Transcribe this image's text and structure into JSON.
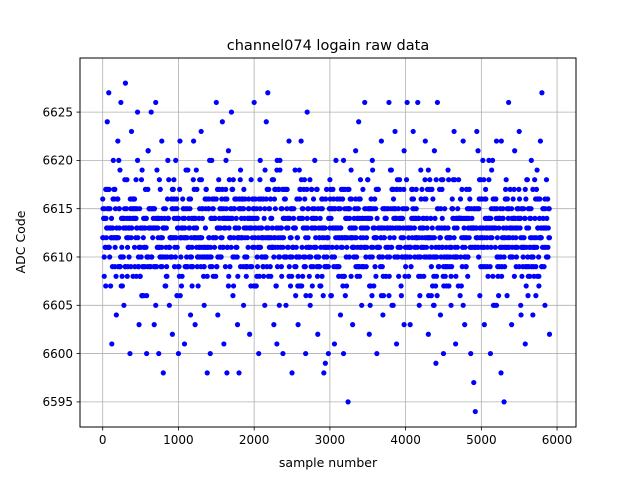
{
  "chart_data": {
    "type": "scatter",
    "title": "channel074 logain raw data",
    "xlabel": "sample number",
    "ylabel": "ADC Code",
    "xlim": [
      -300,
      6250
    ],
    "ylim": [
      6592.4,
      6630.6
    ],
    "x_ticks": [
      0,
      1000,
      2000,
      3000,
      4000,
      5000,
      6000
    ],
    "x_tick_labels": [
      "0",
      "1000",
      "2000",
      "3000",
      "4000",
      "5000",
      "6000"
    ],
    "y_ticks": [
      6595,
      6600,
      6605,
      6610,
      6615,
      6620,
      6625
    ],
    "y_tick_labels": [
      "6595",
      "6600",
      "6605",
      "6610",
      "6615",
      "6620",
      "6625"
    ],
    "grid": true,
    "marker_color": "#0000ff",
    "series": [
      {
        "description": "raw ADC samples, integer codes, sample index 0 to ~5900, mostly between 6600 and 6625",
        "points": [
          [
            0,
            6612
          ],
          [
            20,
            6608
          ],
          [
            40,
            6617
          ],
          [
            60,
            6624
          ],
          [
            80,
            6627
          ],
          [
            100,
            6613
          ],
          [
            120,
            6601
          ],
          [
            140,
            6620
          ],
          [
            160,
            6609
          ],
          [
            180,
            6604
          ],
          [
            200,
            6622
          ],
          [
            220,
            6615
          ],
          [
            240,
            6626
          ],
          [
            260,
            6610
          ],
          [
            280,
            6605
          ],
          [
            300,
            6628
          ],
          [
            320,
            6618
          ],
          [
            340,
            6612
          ],
          [
            360,
            6600
          ],
          [
            380,
            6623
          ],
          [
            400,
            6608
          ],
          [
            420,
            6616
          ],
          [
            440,
            6614
          ],
          [
            460,
            6625
          ],
          [
            480,
            6603
          ],
          [
            500,
            6611
          ],
          [
            520,
            6619
          ],
          [
            540,
            6606
          ],
          [
            560,
            6613
          ],
          [
            580,
            6600
          ],
          [
            600,
            6621
          ],
          [
            620,
            6609
          ],
          [
            640,
            6625
          ],
          [
            660,
            6615
          ],
          [
            680,
            6603
          ],
          [
            700,
            6626
          ],
          [
            720,
            6611
          ],
          [
            740,
            6600
          ],
          [
            760,
            6617
          ],
          [
            780,
            6622
          ],
          [
            800,
            6598
          ],
          [
            820,
            6613
          ],
          [
            840,
            6608
          ],
          [
            860,
            6620
          ],
          [
            880,
            6605
          ],
          [
            900,
            6612
          ],
          [
            920,
            6602
          ],
          [
            940,
            6618
          ],
          [
            960,
            6610
          ],
          [
            980,
            6615
          ],
          [
            1000,
            6600
          ],
          [
            1020,
            6622
          ],
          [
            1040,
            6607
          ],
          [
            1060,
            6614
          ],
          [
            1080,
            6601
          ],
          [
            1100,
            6619
          ],
          [
            1120,
            6609
          ],
          [
            1140,
            6616
          ],
          [
            1160,
            6604
          ],
          [
            1180,
            6611
          ],
          [
            1200,
            6622
          ],
          [
            1220,
            6603
          ],
          [
            1240,
            6613
          ],
          [
            1260,
            6607
          ],
          [
            1280,
            6618
          ],
          [
            1300,
            6623
          ],
          [
            1320,
            6610
          ],
          [
            1340,
            6605
          ],
          [
            1360,
            6615
          ],
          [
            1380,
            6598
          ],
          [
            1400,
            6612
          ],
          [
            1420,
            6600
          ],
          [
            1440,
            6620
          ],
          [
            1460,
            6608
          ],
          [
            1480,
            6614
          ],
          [
            1500,
            6626
          ],
          [
            1520,
            6604
          ],
          [
            1540,
            6617
          ],
          [
            1560,
            6610
          ],
          [
            1580,
            6624
          ],
          [
            1600,
            6601
          ],
          [
            1620,
            6613
          ],
          [
            1640,
            6598
          ],
          [
            1660,
            6621
          ],
          [
            1680,
            6609
          ],
          [
            1700,
            6625
          ],
          [
            1720,
            6606
          ],
          [
            1740,
            6615
          ],
          [
            1760,
            6611
          ],
          [
            1780,
            6603
          ],
          [
            1800,
            6598
          ],
          [
            1820,
            6619
          ],
          [
            1840,
            6612
          ],
          [
            1860,
            6605
          ],
          [
            1880,
            6616
          ],
          [
            1900,
            6609
          ],
          [
            1920,
            6614
          ],
          [
            1940,
            6602
          ],
          [
            1960,
            6618
          ],
          [
            1980,
            6611
          ],
          [
            2000,
            6626
          ],
          [
            2020,
            6607
          ],
          [
            2040,
            6614
          ],
          [
            2060,
            6600
          ],
          [
            2080,
            6620
          ],
          [
            2100,
            6610
          ],
          [
            2120,
            6616
          ],
          [
            2140,
            6605
          ],
          [
            2160,
            6624
          ],
          [
            2180,
            6627
          ],
          [
            2200,
            6612
          ],
          [
            2220,
            6608
          ],
          [
            2240,
            6618
          ],
          [
            2260,
            6603
          ],
          [
            2280,
            6615
          ],
          [
            2300,
            6601
          ],
          [
            2320,
            6613
          ],
          [
            2340,
            6620
          ],
          [
            2360,
            6609
          ],
          [
            2380,
            6600
          ],
          [
            2400,
            6617
          ],
          [
            2420,
            6605
          ],
          [
            2440,
            6611
          ],
          [
            2460,
            6622
          ],
          [
            2480,
            6607
          ],
          [
            2500,
            6598
          ],
          [
            2520,
            6614
          ],
          [
            2540,
            6619
          ],
          [
            2560,
            6610
          ],
          [
            2580,
            6603
          ],
          [
            2600,
            6616
          ],
          [
            2620,
            6622
          ],
          [
            2640,
            6608
          ],
          [
            2660,
            6613
          ],
          [
            2680,
            6600
          ],
          [
            2700,
            6625
          ],
          [
            2720,
            6611
          ],
          [
            2740,
            6605
          ],
          [
            2760,
            6617
          ],
          [
            2780,
            6609
          ],
          [
            2800,
            6620
          ],
          [
            2820,
            6614
          ],
          [
            2840,
            6602
          ],
          [
            2860,
            6612
          ],
          [
            2880,
            6607
          ],
          [
            2900,
            6615
          ],
          [
            2920,
            6598
          ],
          [
            2940,
            6599
          ],
          [
            2960,
            6610
          ],
          [
            2980,
            6600
          ],
          [
            3000,
            6618
          ],
          [
            3020,
            6606
          ],
          [
            3040,
            6613
          ],
          [
            3060,
            6601
          ],
          [
            3080,
            6620
          ],
          [
            3100,
            6609
          ],
          [
            3120,
            6615
          ],
          [
            3140,
            6604
          ],
          [
            3160,
            6612
          ],
          [
            3180,
            6600
          ],
          [
            3200,
            6617
          ],
          [
            3220,
            6607
          ],
          [
            3240,
            6595
          ],
          [
            3260,
            6614
          ],
          [
            3280,
            6619
          ],
          [
            3300,
            6603
          ],
          [
            3320,
            6611
          ],
          [
            3340,
            6621
          ],
          [
            3360,
            6608
          ],
          [
            3380,
            6624
          ],
          [
            3400,
            6616
          ],
          [
            3420,
            6605
          ],
          [
            3440,
            6612
          ],
          [
            3460,
            6626
          ],
          [
            3480,
            6609
          ],
          [
            3500,
            6618
          ],
          [
            3520,
            6602
          ],
          [
            3540,
            6614
          ],
          [
            3560,
            6620
          ],
          [
            3580,
            6607
          ],
          [
            3600,
            6612
          ],
          [
            3620,
            6600
          ],
          [
            3640,
            6617
          ],
          [
            3660,
            6610
          ],
          [
            3680,
            6622
          ],
          [
            3700,
            6604
          ],
          [
            3720,
            6615
          ],
          [
            3740,
            6608
          ],
          [
            3760,
            6613
          ],
          [
            3780,
            6626
          ],
          [
            3800,
            6619
          ],
          [
            3820,
            6605
          ],
          [
            3840,
            6616
          ],
          [
            3860,
            6623
          ],
          [
            3880,
            6601
          ],
          [
            3900,
            6611
          ],
          [
            3920,
            6618
          ],
          [
            3940,
            6607
          ],
          [
            3960,
            6614
          ],
          [
            3980,
            6621
          ],
          [
            4000,
            6609
          ],
          [
            4020,
            6626
          ],
          [
            4040,
            6612
          ],
          [
            4060,
            6603
          ],
          [
            4080,
            6617
          ],
          [
            4100,
            6623
          ],
          [
            4120,
            6610
          ],
          [
            4140,
            6615
          ],
          [
            4160,
            6626
          ],
          [
            4180,
            6605
          ],
          [
            4200,
            6619
          ],
          [
            4220,
            6612
          ],
          [
            4240,
            6608
          ],
          [
            4260,
            6622
          ],
          [
            4280,
            6614
          ],
          [
            4300,
            6602
          ],
          [
            4320,
            6618
          ],
          [
            4340,
            6609
          ],
          [
            4360,
            6616
          ],
          [
            4380,
            6621
          ],
          [
            4400,
            6599
          ],
          [
            4420,
            6626
          ],
          [
            4440,
            6611
          ],
          [
            4460,
            6604
          ],
          [
            4480,
            6617
          ],
          [
            4500,
            6600
          ],
          [
            4520,
            6613
          ],
          [
            4540,
            6607
          ],
          [
            4560,
            6619
          ],
          [
            4580,
            6611
          ],
          [
            4600,
            6605
          ],
          [
            4620,
            6615
          ],
          [
            4640,
            6623
          ],
          [
            4660,
            6601
          ],
          [
            4680,
            6610
          ],
          [
            4700,
            6618
          ],
          [
            4720,
            6606
          ],
          [
            4740,
            6614
          ],
          [
            4760,
            6622
          ],
          [
            4780,
            6603
          ],
          [
            4800,
            6612
          ],
          [
            4820,
            6608
          ],
          [
            4840,
            6617
          ],
          [
            4860,
            6600
          ],
          [
            4880,
            6613
          ],
          [
            4900,
            6597
          ],
          [
            4920,
            6594
          ],
          [
            4940,
            6623
          ],
          [
            4960,
            6611
          ],
          [
            4980,
            6606
          ],
          [
            5000,
            6616
          ],
          [
            5020,
            6620
          ],
          [
            5040,
            6603
          ],
          [
            5060,
            6613
          ],
          [
            5080,
            6609
          ],
          [
            5100,
            6618
          ],
          [
            5120,
            6600
          ],
          [
            5140,
            6612
          ],
          [
            5160,
            6605
          ],
          [
            5180,
            6615
          ],
          [
            5200,
            6622
          ],
          [
            5220,
            6608
          ],
          [
            5240,
            6614
          ],
          [
            5260,
            6598
          ],
          [
            5280,
            6611
          ],
          [
            5300,
            6595
          ],
          [
            5320,
            6617
          ],
          [
            5340,
            6606
          ],
          [
            5360,
            6626
          ],
          [
            5380,
            6610
          ],
          [
            5400,
            6603
          ],
          [
            5420,
            6616
          ],
          [
            5440,
            6621
          ],
          [
            5460,
            6609
          ],
          [
            5480,
            6613
          ],
          [
            5500,
            6623
          ],
          [
            5520,
            6605
          ],
          [
            5540,
            6615
          ],
          [
            5560,
            6611
          ],
          [
            5580,
            6601
          ],
          [
            5600,
            6618
          ],
          [
            5620,
            6608
          ],
          [
            5640,
            6614
          ],
          [
            5660,
            6620
          ],
          [
            5680,
            6604
          ],
          [
            5700,
            6612
          ],
          [
            5720,
            6609
          ],
          [
            5740,
            6616
          ],
          [
            5760,
            6607
          ],
          [
            5780,
            6622
          ],
          [
            5800,
            6627
          ],
          [
            5820,
            6613
          ],
          [
            5840,
            6605
          ],
          [
            5860,
            6618
          ],
          [
            5880,
            6610
          ],
          [
            5900,
            6602
          ]
        ]
      }
    ]
  }
}
